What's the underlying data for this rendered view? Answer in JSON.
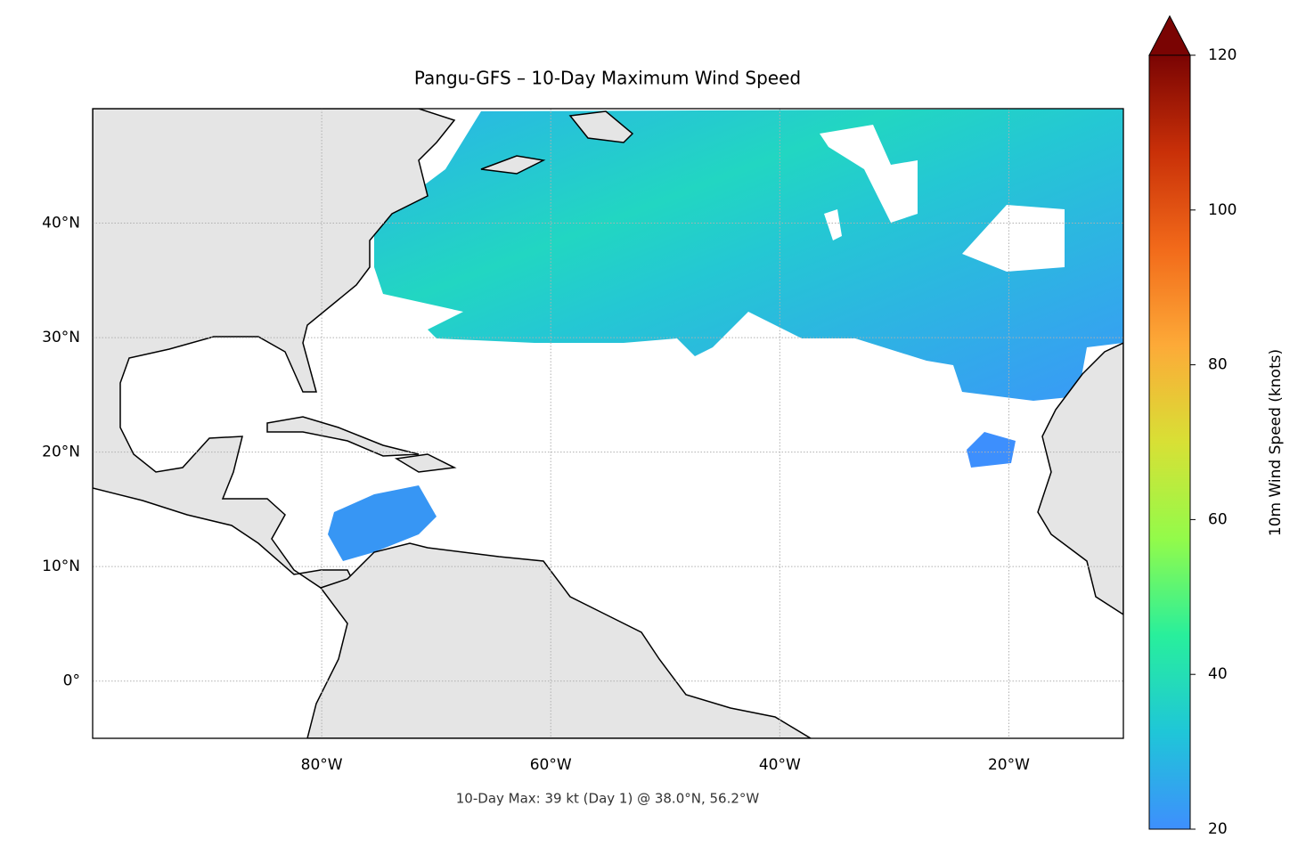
{
  "chart_data": {
    "type": "map",
    "title": "Pangu-GFS – 10-Day Maximum Wind Speed",
    "annotation": "10-Day Max: 39 kt (Day 1) @ 38.0°N, 56.2°W",
    "xlim": [
      -100,
      -10
    ],
    "ylim": [
      -5,
      50
    ],
    "xticks": [
      {
        "value": -80,
        "label": "80°W"
      },
      {
        "value": -60,
        "label": "60°W"
      },
      {
        "value": -40,
        "label": "40°W"
      },
      {
        "value": -20,
        "label": "20°W"
      }
    ],
    "yticks": [
      {
        "value": 0,
        "label": "0°"
      },
      {
        "value": 10,
        "label": "10°N"
      },
      {
        "value": 20,
        "label": "20°N"
      },
      {
        "value": 30,
        "label": "30°N"
      },
      {
        "value": 40,
        "label": "40°N"
      }
    ],
    "grid": true,
    "colorbar": {
      "label": "10m Wind Speed (knots)",
      "clim": [
        20,
        120
      ],
      "ticks": [
        20,
        40,
        60,
        80,
        100,
        120
      ],
      "extend": "max",
      "colormap": [
        "#3e8ffd",
        "#1fc6d8",
        "#28ef9c",
        "#93fb4a",
        "#d8e035",
        "#fdaa38",
        "#f26a1a",
        "#c93008",
        "#7a0403"
      ]
    }
  }
}
